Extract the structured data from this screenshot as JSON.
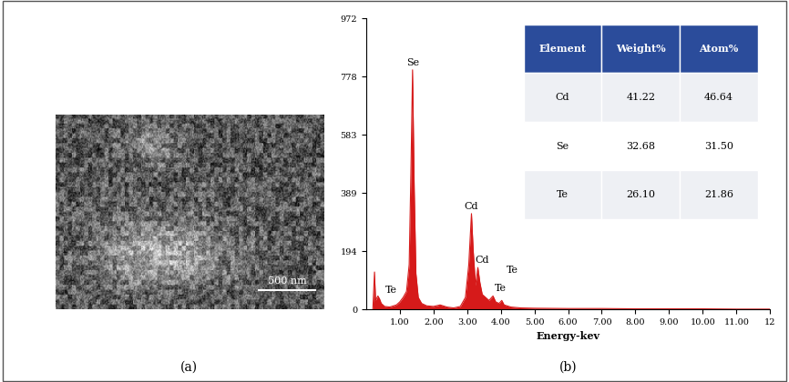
{
  "chart_data": {
    "type": "area",
    "panel_label": "(b)",
    "x_label": "Energy-kev",
    "x": [
      0.2,
      0.25,
      0.28,
      0.35,
      0.4,
      0.45,
      0.55,
      0.7,
      0.9,
      1.0,
      1.1,
      1.2,
      1.28,
      1.33,
      1.38,
      1.43,
      1.48,
      1.55,
      1.65,
      1.8,
      2.0,
      2.2,
      2.4,
      2.6,
      2.8,
      2.95,
      3.05,
      3.13,
      3.18,
      3.25,
      3.32,
      3.38,
      3.45,
      3.55,
      3.65,
      3.77,
      3.85,
      3.95,
      4.03,
      4.1,
      4.3,
      4.6,
      5.0,
      6.0,
      7.0,
      8.0,
      9.0,
      10.0,
      11.0,
      12.0
    ],
    "values": [
      0,
      125,
      30,
      45,
      35,
      20,
      10,
      8,
      15,
      25,
      40,
      60,
      150,
      450,
      800,
      400,
      120,
      40,
      20,
      12,
      10,
      15,
      8,
      5,
      10,
      40,
      150,
      320,
      200,
      80,
      140,
      90,
      50,
      40,
      30,
      45,
      25,
      20,
      30,
      15,
      8,
      5,
      4,
      3,
      3,
      2,
      2,
      2,
      1,
      1
    ],
    "color": "#d61a1a",
    "xlim": [
      0,
      12
    ],
    "xticks": [
      {
        "value": 1,
        "label": "1.00"
      },
      {
        "value": 2,
        "label": "2.00"
      },
      {
        "value": 3,
        "label": "3.00"
      },
      {
        "value": 4,
        "label": "4.00"
      },
      {
        "value": 5,
        "label": "5.00"
      },
      {
        "value": 6,
        "label": "6.00"
      },
      {
        "value": 7,
        "label": "7.00"
      },
      {
        "value": 8,
        "label": "8.00"
      },
      {
        "value": 9,
        "label": "9.00"
      },
      {
        "value": 10,
        "label": "10.00"
      },
      {
        "value": 11,
        "label": "11.00"
      },
      12
    ],
    "ylim": [
      0,
      972
    ],
    "yticks": [
      0,
      194,
      389,
      583,
      778,
      972
    ],
    "grid": false,
    "annotations": [
      {
        "text": "Se",
        "x": 1.38,
        "y": 810
      },
      {
        "text": "Cd",
        "x": 3.13,
        "y": 330
      },
      {
        "text": "Cd",
        "x": 3.45,
        "y": 150
      },
      {
        "text": "Te",
        "x": 0.75,
        "y": 50
      },
      {
        "text": "Te",
        "x": 4.0,
        "y": 55
      },
      {
        "text": "Te",
        "x": 4.35,
        "y": 115
      }
    ],
    "table": {
      "columns": [
        "Element",
        "Weight%",
        "Atom%"
      ],
      "rows": [
        [
          "Cd",
          "41.22",
          "46.64"
        ],
        [
          "Se",
          "32.68",
          "31.50"
        ],
        [
          "Te",
          "26.10",
          "21.86"
        ]
      ]
    }
  },
  "image_panel": {
    "panel_label": "(a)",
    "scale_bar": "500 nm"
  }
}
